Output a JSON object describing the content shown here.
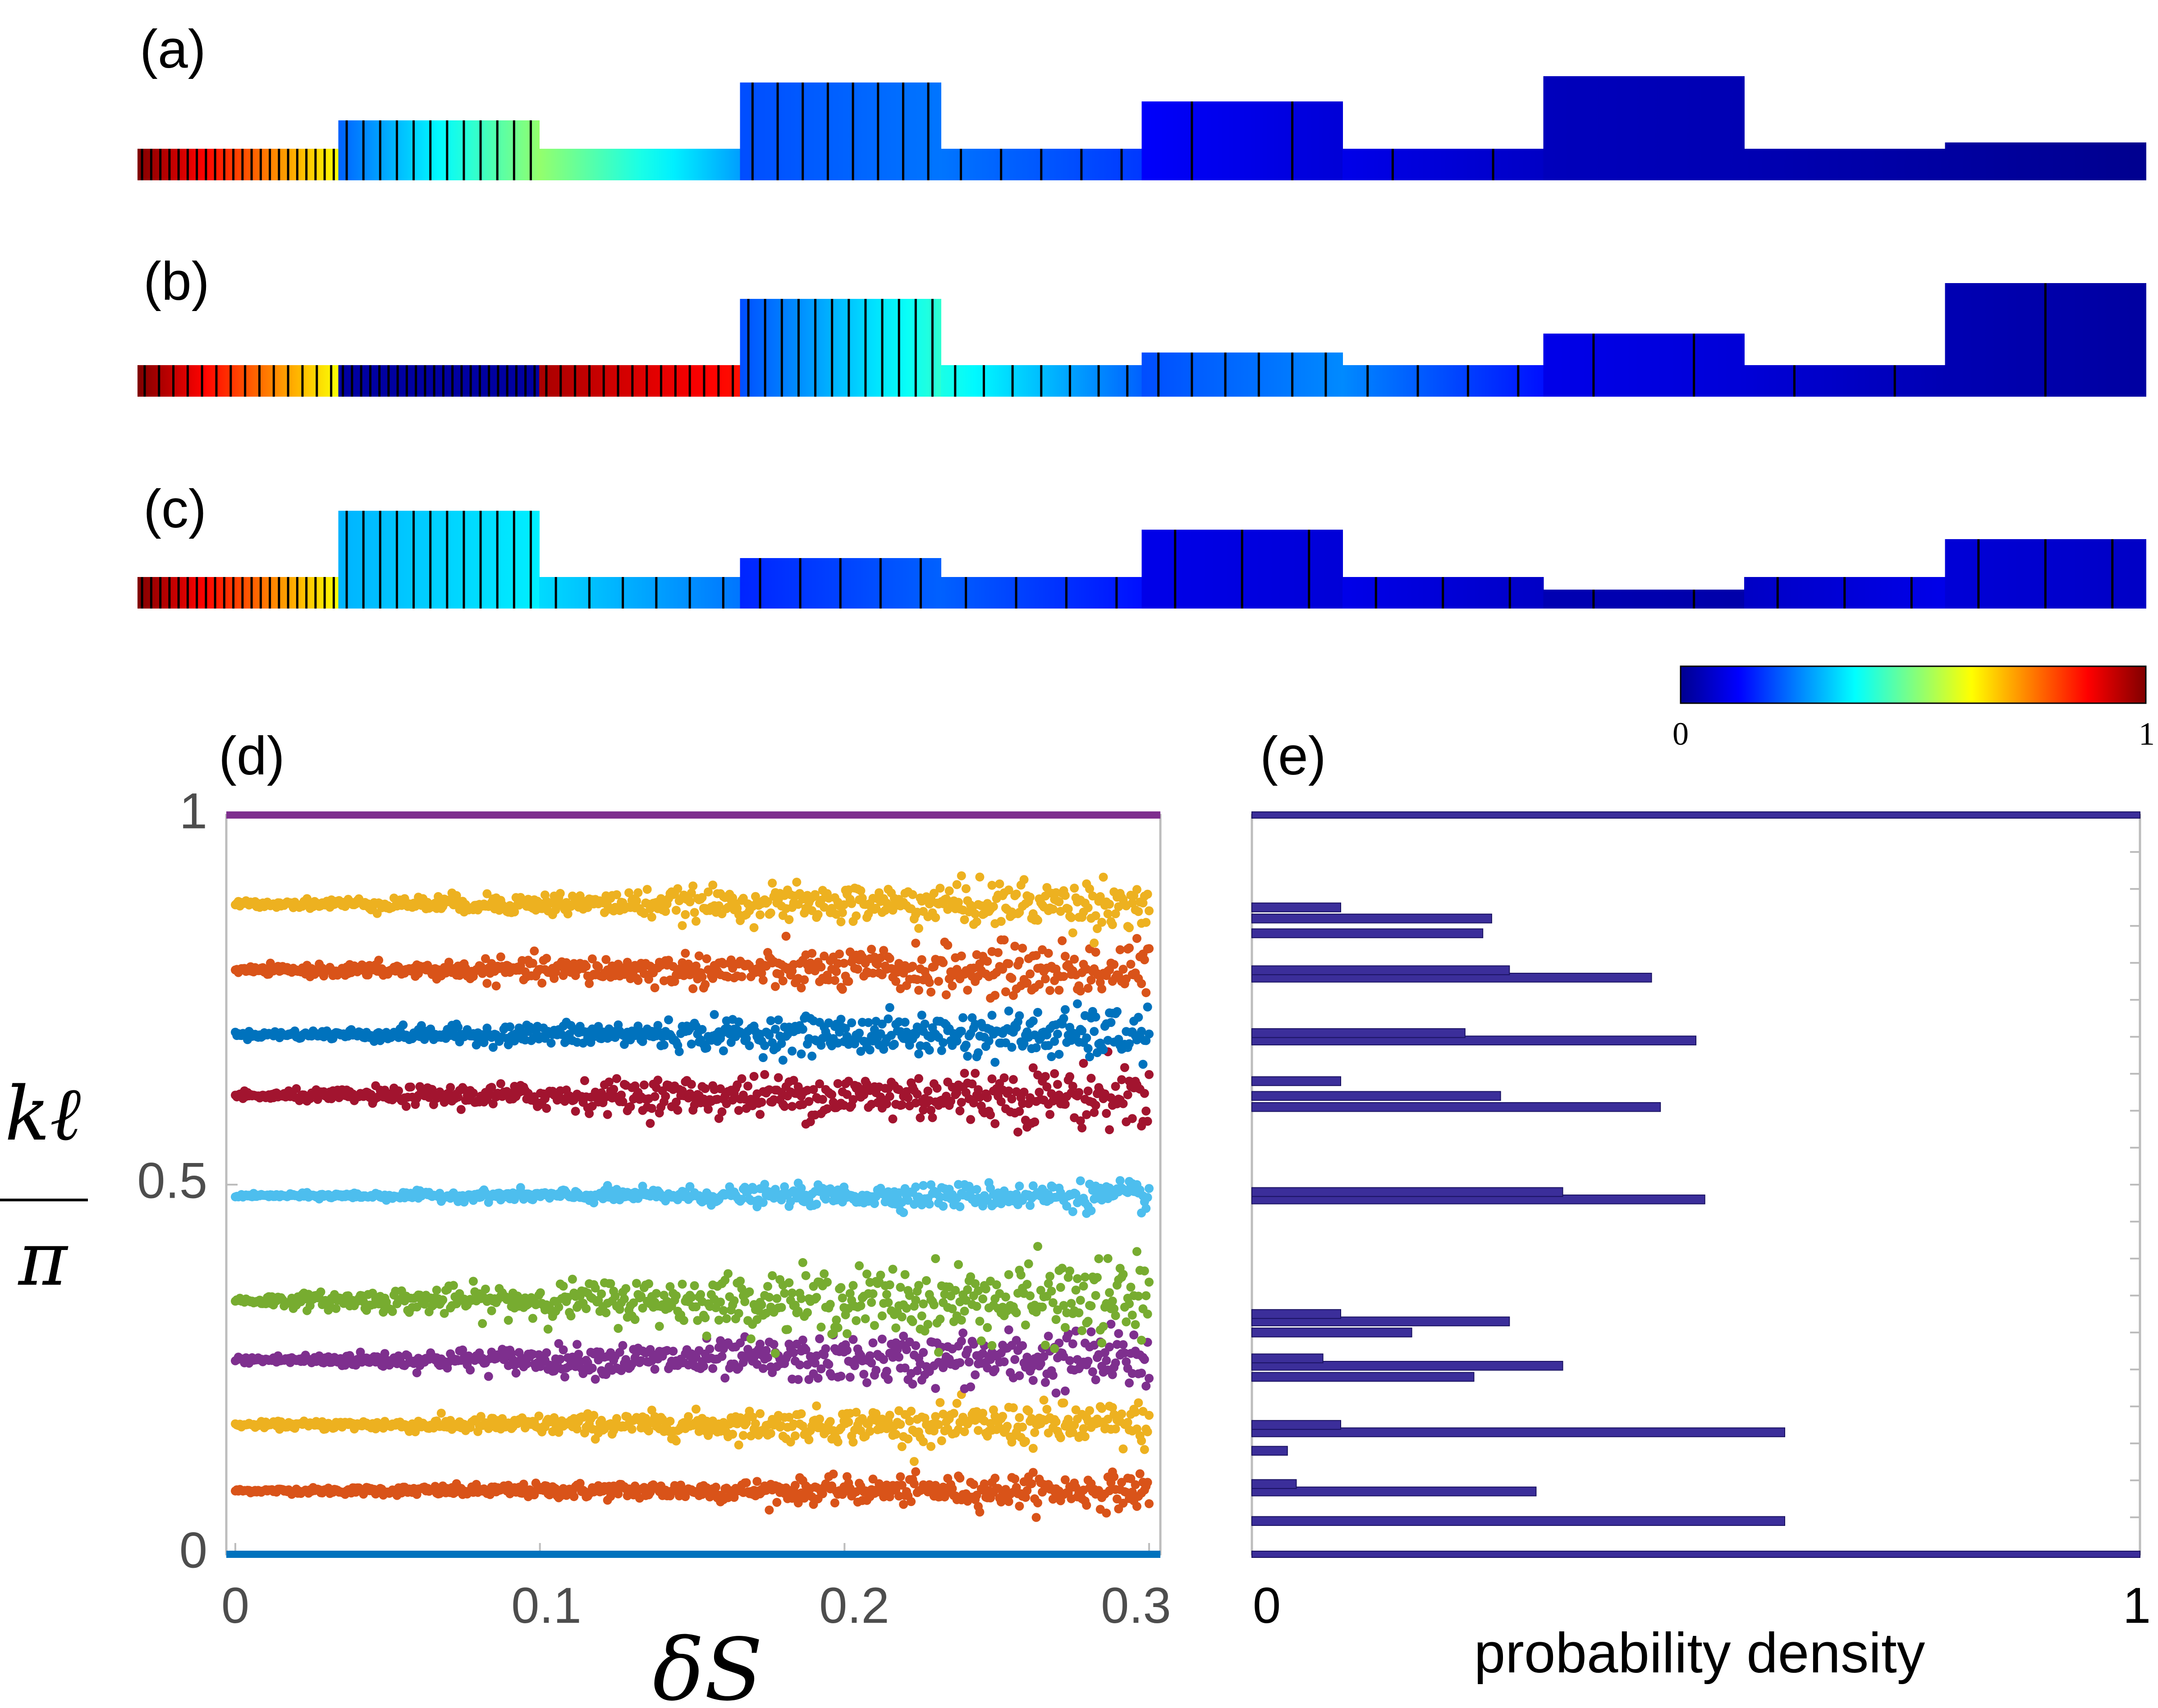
{
  "colors": {
    "jet_low": "#00008f",
    "jet_high": "#800000",
    "contour": "#000000",
    "hist_fill": "#3b2e9a",
    "hist_stroke": "#1a1262",
    "top_line_d": "#7e2f8e",
    "bottom_line_d": "#0072bd"
  },
  "colorbar": {
    "min_label": "0",
    "max_label": "1"
  },
  "panels": {
    "a": {
      "label": "(a)",
      "segments": [
        {
          "h": 0.2,
          "v0": 1.0,
          "v1": 0.62,
          "contours": 22
        },
        {
          "h": 0.38,
          "v0": 0.22,
          "v1": 0.52,
          "contours": 12
        },
        {
          "h": 0.2,
          "v0": 0.52,
          "v1": 0.28,
          "contours": 0
        },
        {
          "h": 0.62,
          "v0": 0.2,
          "v1": 0.24,
          "contours": 8
        },
        {
          "h": 0.2,
          "v0": 0.24,
          "v1": 0.18,
          "contours": 5
        },
        {
          "h": 0.5,
          "v0": 0.12,
          "v1": 0.08,
          "contours": 2
        },
        {
          "h": 0.2,
          "v0": 0.1,
          "v1": 0.06,
          "contours": 2
        },
        {
          "h": 0.66,
          "v0": 0.05,
          "v1": 0.04,
          "contours": 0
        },
        {
          "h": 0.2,
          "v0": 0.04,
          "v1": 0.02,
          "contours": 0
        },
        {
          "h": 0.24,
          "v0": 0.02,
          "v1": 0.0,
          "contours": 0
        }
      ]
    },
    "b": {
      "label": "(b)",
      "segments": [
        {
          "h": 0.2,
          "v0": 1.0,
          "v1": 0.62,
          "contours": 14
        },
        {
          "h": 0.2,
          "v0": 0.02,
          "v1": 0.02,
          "contours": 22
        },
        {
          "h": 0.2,
          "v0": 0.96,
          "v1": 0.86,
          "contours": 14
        },
        {
          "h": 0.62,
          "v0": 0.2,
          "v1": 0.42,
          "contours": 12
        },
        {
          "h": 0.2,
          "v0": 0.4,
          "v1": 0.22,
          "contours": 7
        },
        {
          "h": 0.28,
          "v0": 0.2,
          "v1": 0.26,
          "contours": 6
        },
        {
          "h": 0.2,
          "v0": 0.26,
          "v1": 0.14,
          "contours": 4
        },
        {
          "h": 0.4,
          "v0": 0.1,
          "v1": 0.08,
          "contours": 2
        },
        {
          "h": 0.2,
          "v0": 0.08,
          "v1": 0.04,
          "contours": 2
        },
        {
          "h": 0.72,
          "v0": 0.04,
          "v1": 0.02,
          "contours": 1
        }
      ]
    },
    "c": {
      "label": "(c)",
      "segments": [
        {
          "h": 0.2,
          "v0": 1.0,
          "v1": 0.62,
          "contours": 22
        },
        {
          "h": 0.62,
          "v0": 0.3,
          "v1": 0.36,
          "contours": 12
        },
        {
          "h": 0.2,
          "v0": 0.34,
          "v1": 0.24,
          "contours": 6
        },
        {
          "h": 0.32,
          "v0": 0.16,
          "v1": 0.22,
          "contours": 5
        },
        {
          "h": 0.2,
          "v0": 0.22,
          "v1": 0.14,
          "contours": 4
        },
        {
          "h": 0.5,
          "v0": 0.1,
          "v1": 0.08,
          "contours": 3
        },
        {
          "h": 0.2,
          "v0": 0.1,
          "v1": 0.06,
          "contours": 3
        },
        {
          "h": 0.12,
          "v0": 0.04,
          "v1": 0.03,
          "contours": 2
        },
        {
          "h": 0.2,
          "v0": 0.06,
          "v1": 0.1,
          "contours": 3
        },
        {
          "h": 0.44,
          "v0": 0.08,
          "v1": 0.06,
          "contours": 3
        }
      ]
    }
  },
  "chart_data": [
    {
      "panel": "(d)",
      "type": "scatter",
      "xlabel": "δS",
      "ylabel": "kℓ/π",
      "xlim": [
        0,
        0.3
      ],
      "ylim": [
        0,
        1
      ],
      "xticks": [
        "0",
        "0.1",
        "0.2",
        "0.3"
      ],
      "yticks": [
        "0",
        "0.5",
        "1"
      ],
      "series": [
        {
          "color": "#0072bd",
          "mean": 0.0,
          "spread": 0.0,
          "flat": true
        },
        {
          "color": "#d95319",
          "mean": 0.086,
          "spread": 0.012
        },
        {
          "color": "#edb120",
          "mean": 0.175,
          "spread": 0.016
        },
        {
          "color": "#7e2f8e",
          "mean": 0.263,
          "spread": 0.022
        },
        {
          "color": "#77ac30",
          "mean": 0.343,
          "spread": 0.03
        },
        {
          "color": "#4dbeee",
          "mean": 0.485,
          "spread": 0.01
        },
        {
          "color": "#a2142f",
          "mean": 0.62,
          "spread": 0.022
        },
        {
          "color": "#0072bd",
          "mean": 0.703,
          "spread": 0.018
        },
        {
          "color": "#d95319",
          "mean": 0.79,
          "spread": 0.02
        },
        {
          "color": "#edb120",
          "mean": 0.88,
          "spread": 0.018
        },
        {
          "color": "#7e2f8e",
          "mean": 1.0,
          "spread": 0.0,
          "flat": true
        }
      ]
    },
    {
      "panel": "(e)",
      "type": "bar",
      "orientation": "horizontal",
      "xlabel": "probability density",
      "xlim": [
        0,
        1
      ],
      "ylim": [
        0,
        1
      ],
      "xticks": [
        "0",
        "1"
      ],
      "bins": [
        {
          "y": 0.0,
          "value": 1.0
        },
        {
          "y": 0.045,
          "value": 0.6
        },
        {
          "y": 0.085,
          "value": 0.32
        },
        {
          "y": 0.095,
          "value": 0.05
        },
        {
          "y": 0.14,
          "value": 0.04
        },
        {
          "y": 0.165,
          "value": 0.6
        },
        {
          "y": 0.175,
          "value": 0.1
        },
        {
          "y": 0.24,
          "value": 0.25
        },
        {
          "y": 0.255,
          "value": 0.35
        },
        {
          "y": 0.265,
          "value": 0.08
        },
        {
          "y": 0.3,
          "value": 0.18
        },
        {
          "y": 0.315,
          "value": 0.29
        },
        {
          "y": 0.325,
          "value": 0.1
        },
        {
          "y": 0.48,
          "value": 0.51
        },
        {
          "y": 0.49,
          "value": 0.35
        },
        {
          "y": 0.605,
          "value": 0.46
        },
        {
          "y": 0.62,
          "value": 0.28
        },
        {
          "y": 0.64,
          "value": 0.1
        },
        {
          "y": 0.695,
          "value": 0.5
        },
        {
          "y": 0.705,
          "value": 0.24
        },
        {
          "y": 0.78,
          "value": 0.45
        },
        {
          "y": 0.79,
          "value": 0.29
        },
        {
          "y": 0.84,
          "value": 0.26
        },
        {
          "y": 0.86,
          "value": 0.27
        },
        {
          "y": 0.875,
          "value": 0.1
        },
        {
          "y": 1.0,
          "value": 1.0
        }
      ]
    }
  ]
}
